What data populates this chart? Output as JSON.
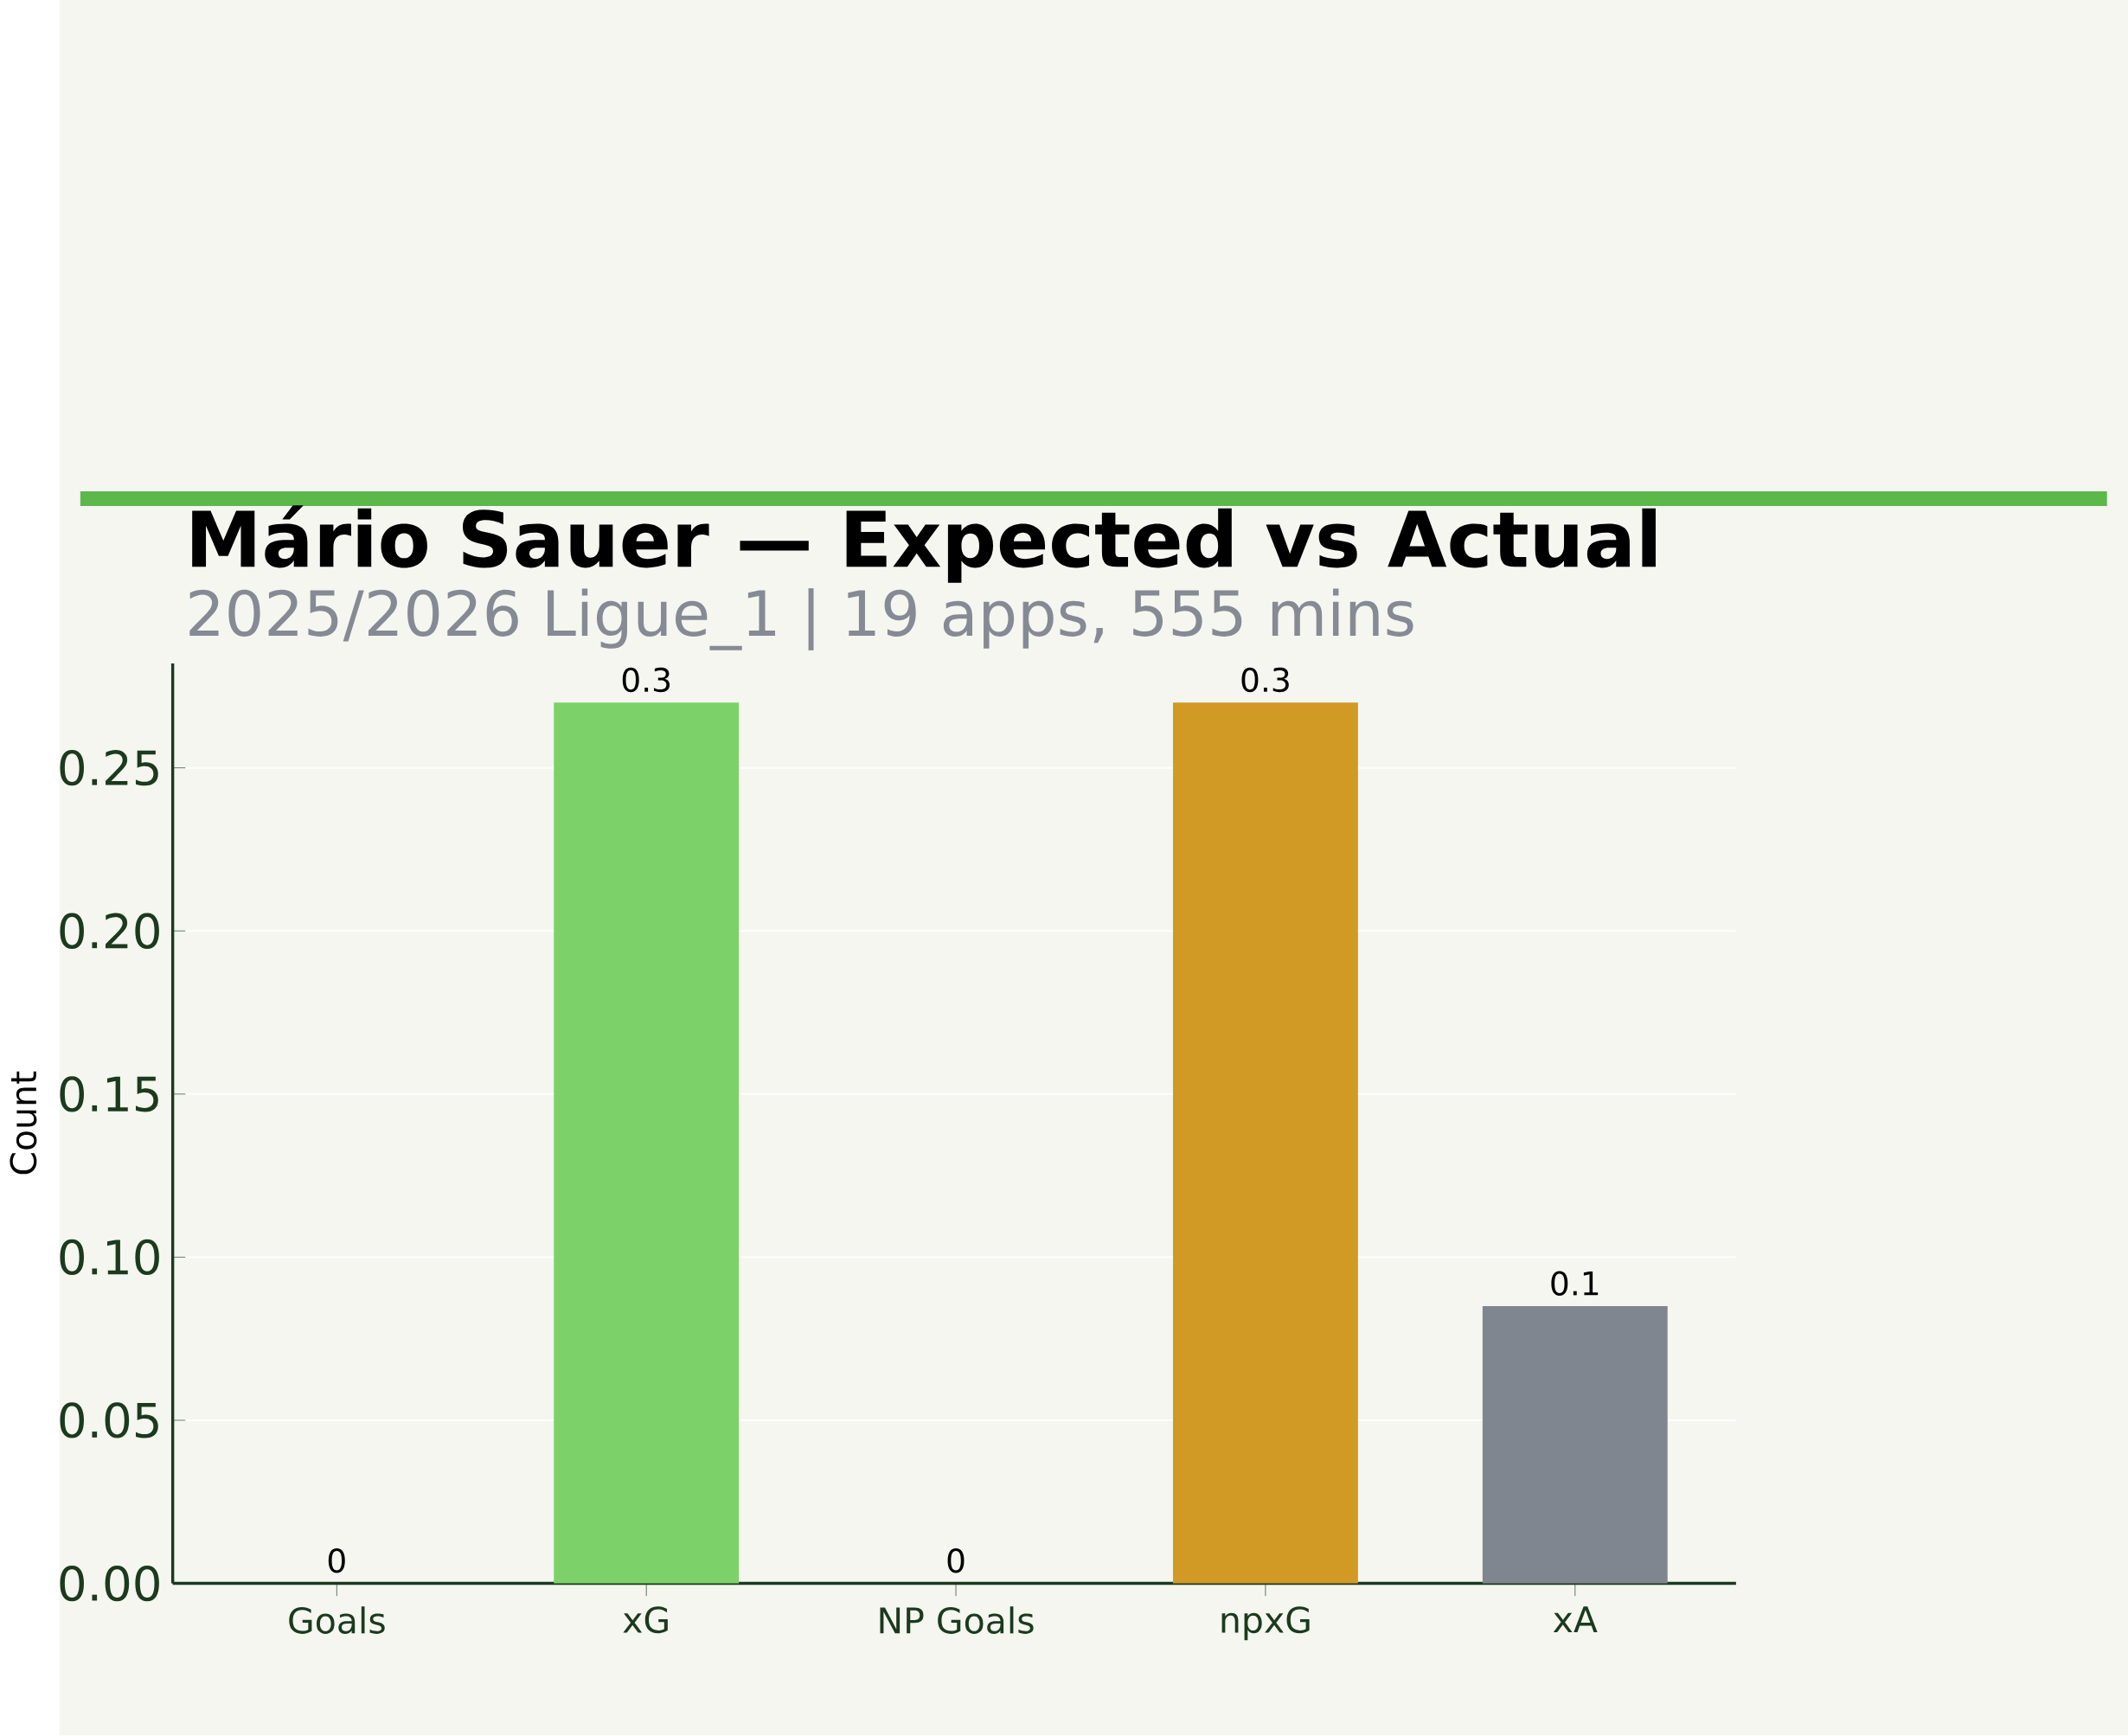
{
  "chart_data": {
    "type": "bar",
    "title": "Mário Sauer — Expected vs Actual",
    "subtitle": "2025/2026 Ligue_1 | 19 apps, 555 mins",
    "ylabel": "Count",
    "categories": [
      "Goals",
      "xG",
      "NP Goals",
      "npxG",
      "xA"
    ],
    "values": [
      0,
      0.27,
      0,
      0.27,
      0.085
    ],
    "colors": [
      "#5cb84a",
      "#7dd169",
      "#5cb84a",
      "#d19a24",
      "#80868f"
    ],
    "value_labels": [
      "0",
      "0.3",
      "0",
      "0.3",
      "0.1"
    ],
    "ylim": [
      0,
      0.282
    ],
    "yticks": [
      {
        "value": 0,
        "label": "0.00"
      },
      {
        "value": 0.05,
        "label": "0.05"
      },
      {
        "value": 0.1,
        "label": "0.10"
      },
      {
        "value": 0.15,
        "label": "0.15"
      },
      {
        "value": 0.2,
        "label": "0.20"
      },
      {
        "value": 0.25,
        "label": "0.25"
      }
    ],
    "grid": "y"
  }
}
